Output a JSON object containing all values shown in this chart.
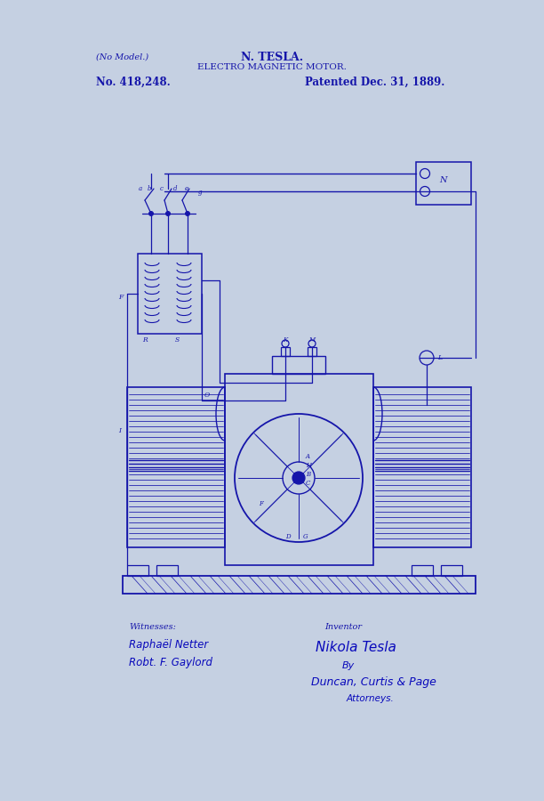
{
  "bg_color": "#c5d0e2",
  "line_color": "#1515aa",
  "dark_blue": "#0808bb",
  "title_line1": "N. TESLA.",
  "title_line2": "ELECTRO MAGNETIC MOTOR.",
  "patent_no": "No. 418,248.",
  "patent_date": "Patented Dec. 31, 1889.",
  "no_model": "(No Model.)",
  "witness_label": "Witnesses:",
  "witness1": "Raphaël Netter",
  "witness2": "Robt. F. Gaylord",
  "inventor_label": "Inventor",
  "inventor_name": "Nikola Tesla",
  "attorney_by": "By",
  "attorney_name": "Duncan, Curtis & Page",
  "attorney_label": "Attorneys.",
  "fig_width": 6.12,
  "fig_height": 9.0,
  "dpi": 100
}
